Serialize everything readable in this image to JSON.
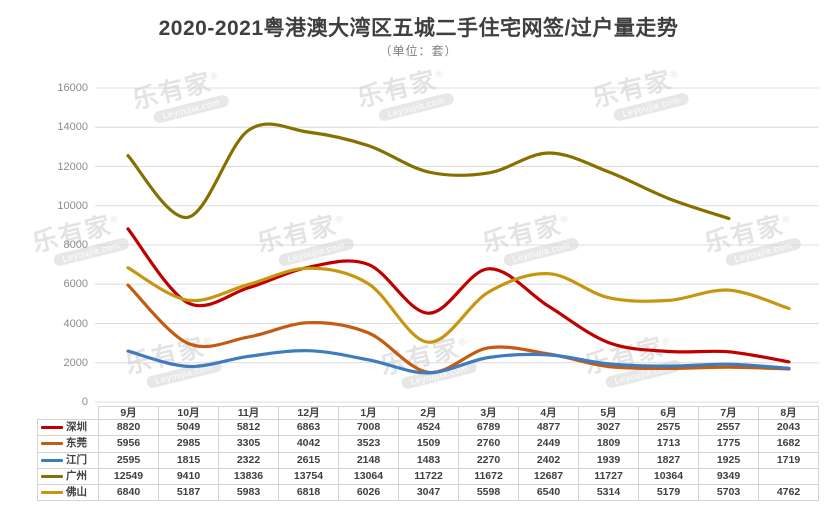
{
  "title": "2020-2021粤港澳大湾区五城二手住宅网签/过户量走势",
  "subtitle": "（单位：套）",
  "watermark": {
    "brand": "乐有家",
    "reg": "®",
    "domain": "Leyoujia.com"
  },
  "colors": {
    "title": "#3f3f3f",
    "subtitle": "#7f7f7f",
    "grid": "#dcdcdc",
    "axis_label": "#8c8c8c",
    "table_border": "#d3d3d3",
    "table_text": "#404040",
    "watermark": "#d2d2d2"
  },
  "chart_data": {
    "type": "line",
    "smooth": true,
    "title": "2020-2021粤港澳大湾区五城二手住宅网签/过户量走势",
    "subtitle": "（单位：套）",
    "xlabel": "",
    "ylabel": "",
    "ylim": [
      0,
      16000
    ],
    "y_ticks": [
      0,
      2000,
      4000,
      6000,
      8000,
      10000,
      12000,
      14000,
      16000
    ],
    "grid": true,
    "legend_position": "table-left",
    "categories": [
      "9月",
      "10月",
      "11月",
      "12月",
      "1月",
      "2月",
      "3月",
      "4月",
      "5月",
      "6月",
      "7月",
      "8月"
    ],
    "series": [
      {
        "name": "深圳",
        "color": "#c00000",
        "values": [
          8820,
          5049,
          5812,
          6863,
          7008,
          4524,
          6789,
          4877,
          3027,
          2575,
          2557,
          2043
        ]
      },
      {
        "name": "东莞",
        "color": "#c55a11",
        "values": [
          5956,
          2985,
          3305,
          4042,
          3523,
          1509,
          2760,
          2449,
          1809,
          1713,
          1775,
          1682
        ]
      },
      {
        "name": "江门",
        "color": "#3e7cbe",
        "values": [
          2595,
          1815,
          2322,
          2615,
          2148,
          1483,
          2270,
          2402,
          1939,
          1827,
          1925,
          1719
        ]
      },
      {
        "name": "广州",
        "color": "#867000",
        "values": [
          12549,
          9410,
          13836,
          13754,
          13064,
          11722,
          11672,
          12687,
          11727,
          10364,
          9349,
          null
        ]
      },
      {
        "name": "佛山",
        "color": "#c79611",
        "values": [
          6840,
          5187,
          5983,
          6818,
          6026,
          3047,
          5598,
          6540,
          5314,
          5179,
          5703,
          4762
        ]
      }
    ]
  }
}
